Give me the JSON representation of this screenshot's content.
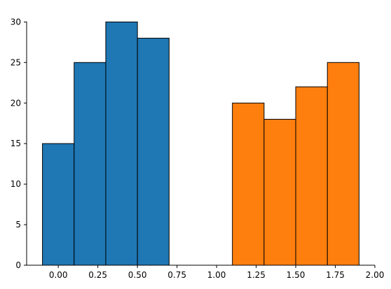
{
  "chart_data": {
    "type": "bar",
    "title": "",
    "xlabel": "",
    "ylabel": "",
    "xlim": [
      -0.2,
      2.0
    ],
    "ylim": [
      0,
      31.5
    ],
    "grid": false,
    "x_ticks": [
      0.0,
      0.25,
      0.5,
      0.75,
      1.0,
      1.25,
      1.5,
      1.75,
      2.0
    ],
    "x_tick_labels": [
      "0.00",
      "0.25",
      "0.50",
      "0.75",
      "1.00",
      "1.25",
      "1.50",
      "1.75",
      "2.00"
    ],
    "y_ticks": [
      0,
      5,
      10,
      15,
      20,
      25,
      30
    ],
    "y_tick_labels": [
      "0",
      "5",
      "10",
      "15",
      "20",
      "25",
      "30"
    ],
    "series": [
      {
        "color": "#1f77b4",
        "bins": [
          {
            "x_start": -0.1,
            "x_end": 0.1,
            "value": 15
          },
          {
            "x_start": 0.1,
            "x_end": 0.3,
            "value": 25
          },
          {
            "x_start": 0.3,
            "x_end": 0.5,
            "value": 30
          },
          {
            "x_start": 0.5,
            "x_end": 0.7,
            "value": 28
          }
        ]
      },
      {
        "color": "#ff7f0e",
        "bins": [
          {
            "x_start": 1.1,
            "x_end": 1.3,
            "value": 20
          },
          {
            "x_start": 1.3,
            "x_end": 1.5,
            "value": 18
          },
          {
            "x_start": 1.5,
            "x_end": 1.7,
            "value": 22
          },
          {
            "x_start": 1.7,
            "x_end": 1.9,
            "value": 25
          }
        ]
      }
    ]
  }
}
